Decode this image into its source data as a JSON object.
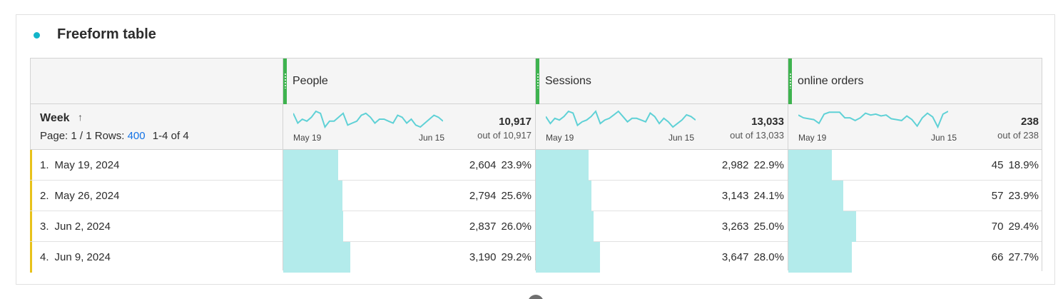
{
  "panel": {
    "title": "Freeform table",
    "accent_color": "#12b5c9"
  },
  "table": {
    "dimension": {
      "label": "Week",
      "sort_icon": "arrow-up-icon",
      "pager": {
        "page_text": "Page: 1 / 1",
        "rows_label": "Rows:",
        "rows_value": "400",
        "range": "1-4 of 4"
      }
    },
    "metrics": [
      {
        "name": "People",
        "total": "10,917",
        "out_of": "out of 10,917",
        "spark_from": "May 19",
        "spark_to": "Jun 15",
        "sparkline": [
          14,
          9,
          11,
          10,
          12,
          15,
          14,
          7,
          10,
          10,
          12,
          14,
          8,
          9,
          10,
          13,
          14,
          12,
          9,
          11,
          11,
          10,
          9,
          13,
          12,
          9,
          11,
          8,
          7,
          9,
          11,
          13,
          12,
          10
        ]
      },
      {
        "name": "Sessions",
        "total": "13,033",
        "out_of": "out of 13,033",
        "spark_from": "May 19",
        "spark_to": "Jun 15",
        "sparkline": [
          12,
          8,
          11,
          10,
          12,
          15,
          14,
          7,
          9,
          10,
          12,
          15,
          8,
          10,
          11,
          13,
          15,
          12,
          9,
          11,
          11,
          10,
          9,
          14,
          12,
          8,
          11,
          9,
          6,
          8,
          10,
          13,
          12,
          10
        ]
      },
      {
        "name": "online orders",
        "total": "238",
        "out_of": "out of 238",
        "spark_from": "May 19",
        "spark_to": "Jun 15",
        "sparkline": [
          16,
          13,
          12,
          11,
          7,
          17,
          19,
          19,
          19,
          13,
          13,
          10,
          13,
          18,
          16,
          17,
          15,
          16,
          12,
          11,
          10,
          15,
          11,
          4,
          13,
          18,
          14,
          3,
          17,
          20
        ]
      }
    ],
    "rows": [
      {
        "num": "1.",
        "label": "May 19, 2024",
        "cells": [
          {
            "value": "2,604",
            "pct": "23.9%",
            "share": 0.239
          },
          {
            "value": "2,982",
            "pct": "22.9%",
            "share": 0.229
          },
          {
            "value": "45",
            "pct": "18.9%",
            "share": 0.189
          }
        ]
      },
      {
        "num": "2.",
        "label": "May 26, 2024",
        "cells": [
          {
            "value": "2,794",
            "pct": "25.6%",
            "share": 0.256
          },
          {
            "value": "3,143",
            "pct": "24.1%",
            "share": 0.241
          },
          {
            "value": "57",
            "pct": "23.9%",
            "share": 0.239
          }
        ]
      },
      {
        "num": "3.",
        "label": "Jun 2, 2024",
        "cells": [
          {
            "value": "2,837",
            "pct": "26.0%",
            "share": 0.26
          },
          {
            "value": "3,263",
            "pct": "25.0%",
            "share": 0.25
          },
          {
            "value": "70",
            "pct": "29.4%",
            "share": 0.294
          }
        ]
      },
      {
        "num": "4.",
        "label": "Jun 9, 2024",
        "cells": [
          {
            "value": "3,190",
            "pct": "29.2%",
            "share": 0.292
          },
          {
            "value": "3,647",
            "pct": "28.0%",
            "share": 0.28
          },
          {
            "value": "66",
            "pct": "27.7%",
            "share": 0.277
          }
        ]
      }
    ]
  },
  "colors": {
    "bar": "#b3ebeb",
    "sparkline": "#5fd1d6",
    "handle": "#3eb34f",
    "row_marker": "#e8c21b",
    "link": "#1473e6"
  }
}
